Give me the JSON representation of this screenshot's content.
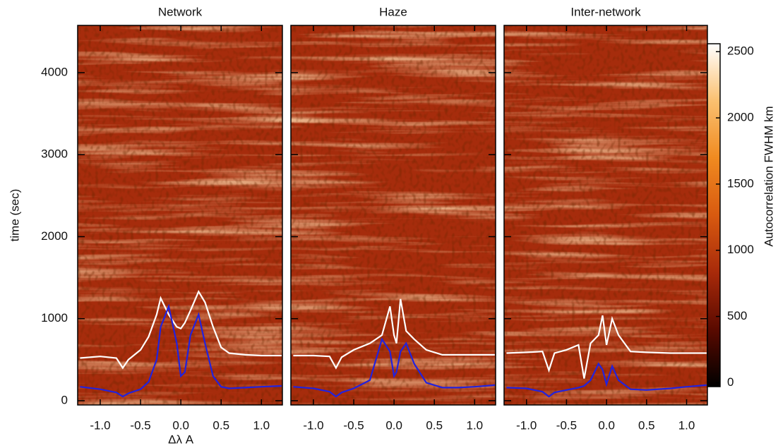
{
  "chart_data": [
    {
      "type": "line",
      "title": "Network",
      "x_label": "Δλ A",
      "y_label": "time (sec)",
      "y_tick_labels": true,
      "xlim": [
        -1.28,
        1.26
      ],
      "xticks": [
        {
          "value": -1.0,
          "label": "-1.0"
        },
        {
          "value": -0.5,
          "label": "-0.5"
        },
        {
          "value": 0.0,
          "label": "0.0"
        },
        0.5,
        {
          "value": 1.0,
          "label": "1.0"
        }
      ],
      "ylim": [
        -52,
        4576
      ],
      "yticks": [
        0,
        1000,
        2000,
        3000,
        4000
      ],
      "x": [
        -1.25,
        -1.0,
        -0.8,
        -0.72,
        -0.65,
        -0.5,
        -0.4,
        -0.3,
        -0.25,
        -0.15,
        -0.05,
        0.0,
        0.05,
        0.12,
        0.22,
        0.3,
        0.4,
        0.5,
        0.6,
        0.8,
        1.0,
        1.25
      ],
      "series": [
        {
          "color": "#ffffff",
          "values": [
            520,
            540,
            520,
            400,
            500,
            620,
            780,
            1050,
            1250,
            1050,
            900,
            880,
            950,
            1100,
            1330,
            1200,
            900,
            650,
            580,
            560,
            550,
            550
          ]
        },
        {
          "color": "#2222dd",
          "values": [
            170,
            140,
            100,
            50,
            90,
            140,
            230,
            500,
            900,
            1150,
            700,
            300,
            350,
            800,
            1050,
            700,
            300,
            170,
            150,
            160,
            170,
            180
          ]
        }
      ]
    },
    {
      "type": "line",
      "title": "Haze",
      "y_tick_labels": false,
      "xlim": [
        -1.28,
        1.26
      ],
      "xticks": [
        {
          "value": -1.0,
          "label": "-1.0"
        },
        {
          "value": -0.5,
          "label": "-0.5"
        },
        {
          "value": 0.0,
          "label": "0.0"
        },
        0.5,
        {
          "value": 1.0,
          "label": "1.0"
        }
      ],
      "ylim": [
        -52,
        4576
      ],
      "yticks": [
        0,
        1000,
        2000,
        3000,
        4000
      ],
      "x": [
        -1.25,
        -1.0,
        -0.8,
        -0.72,
        -0.65,
        -0.5,
        -0.3,
        -0.15,
        -0.05,
        0.0,
        0.03,
        0.08,
        0.15,
        0.25,
        0.4,
        0.6,
        0.8,
        1.0,
        1.25
      ],
      "series": [
        {
          "color": "#ffffff",
          "values": [
            550,
            550,
            540,
            400,
            530,
            620,
            700,
            800,
            1150,
            800,
            700,
            1240,
            850,
            750,
            620,
            560,
            560,
            560,
            560
          ]
        },
        {
          "color": "#2222dd",
          "values": [
            170,
            150,
            110,
            50,
            100,
            150,
            250,
            750,
            600,
            300,
            350,
            600,
            700,
            450,
            220,
            160,
            160,
            170,
            190
          ]
        }
      ]
    },
    {
      "type": "line",
      "title": "Inter-network",
      "y_tick_labels": false,
      "xlim": [
        -1.28,
        1.26
      ],
      "xticks": [
        {
          "value": -1.0,
          "label": "-1.0"
        },
        {
          "value": -0.5,
          "label": "-0.5"
        },
        {
          "value": 0.0,
          "label": "0.0"
        },
        0.5,
        {
          "value": 1.0,
          "label": "1.0"
        }
      ],
      "ylim": [
        -52,
        4576
      ],
      "yticks": [
        0,
        1000,
        2000,
        3000,
        4000
      ],
      "x": [
        -1.25,
        -1.0,
        -0.8,
        -0.72,
        -0.65,
        -0.5,
        -0.35,
        -0.28,
        -0.2,
        -0.1,
        -0.05,
        0.0,
        0.07,
        0.15,
        0.3,
        0.5,
        0.8,
        1.0,
        1.25
      ],
      "series": [
        {
          "color": "#ffffff",
          "values": [
            580,
            590,
            600,
            370,
            580,
            620,
            680,
            270,
            700,
            800,
            1040,
            680,
            1000,
            800,
            600,
            590,
            580,
            580,
            580
          ]
        },
        {
          "color": "#2222dd",
          "values": [
            160,
            150,
            110,
            50,
            100,
            130,
            160,
            180,
            250,
            450,
            380,
            200,
            420,
            250,
            140,
            130,
            150,
            170,
            190
          ]
        }
      ]
    },
    {
      "type": "colorbar",
      "label": "Autocorrelation FWHM km",
      "ylim": [
        -30,
        2560
      ],
      "yticks": [
        0,
        500,
        1000,
        1500,
        2000,
        2500
      ],
      "colors": [
        "#000000",
        "#5a0a00",
        "#a82a0a",
        "#d85a10",
        "#f08a20",
        "#fbc070",
        "#ffffff"
      ]
    }
  ]
}
